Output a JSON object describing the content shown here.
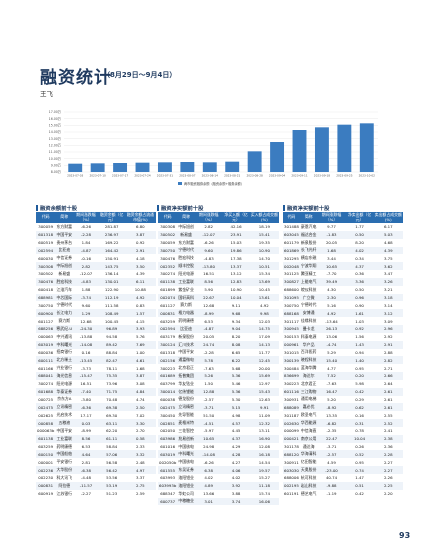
{
  "header": {
    "title": "融资统计",
    "date_range": "（8月29日～9月4日）",
    "author": "王飞"
  },
  "chart_data": {
    "type": "bar",
    "legend": "两市融资融券余额（融资余额+融券余额）",
    "y_ticks": [
      "17.00万",
      "16.00万",
      "15.00万",
      "14.00万",
      "13.00万",
      "12.00万",
      "11.00万",
      "10.00万",
      "9.00万",
      "8.00万"
    ],
    "ylim": [
      8,
      17
    ],
    "categories": [
      "2023-07-03",
      "2023-07-10",
      "2023-07-17",
      "2023-07-24",
      "2023-07-31",
      "2023-08-07",
      "2023-08-14",
      "2023-08-21",
      "2023-08-28",
      "2023-09-04",
      "2023-09-11",
      "2023-09-18",
      "2023-09-25",
      "2023-10-02"
    ],
    "values": [
      9.25,
      9.3,
      9.35,
      9.4,
      9.45,
      9.5,
      9.45,
      9.55,
      11.1,
      12.5,
      14.3,
      14.7,
      15.1,
      15.3
    ]
  },
  "sections": {
    "left": "融资余额前十股",
    "mid": "融资净买额前十股",
    "right": "融资净买额前十股"
  },
  "tables": {
    "left": {
      "headers": [
        "代码",
        "简称",
        "期间涨跌幅（%）",
        "融资余额（亿元）",
        "融资余额占流通市值(%)"
      ],
      "rows": [
        [
          "300059",
          "东方财富",
          "-6.26",
          "281.87",
          "6.80"
        ],
        [
          "601318",
          "中国平安",
          "-2.28",
          "236.97",
          "3.87"
        ],
        [
          "600519",
          "贵州茅台",
          "1.84",
          "169.22",
          "0.92"
        ],
        [
          "002594",
          "比亚迪",
          "-4.87",
          "164.42",
          "2.91"
        ],
        [
          "600030",
          "中信证券",
          "-0.16",
          "150.91",
          "4.18"
        ],
        [
          "300308",
          "中际旭创",
          "2.82",
          "143.75",
          "3.50"
        ],
        [
          "300502",
          "新易盛",
          "-12.07",
          "136.14",
          "4.39"
        ],
        [
          "300476",
          "胜宏科技",
          "-4.83",
          "130.01",
          "6.11"
        ],
        [
          "600418",
          "江淮汽车",
          "1.88",
          "122.90",
          "10.88"
        ],
        [
          "688981",
          "中芯国际",
          "-3.74",
          "112.19",
          "4.92"
        ],
        [
          "300750",
          "宁德时代",
          "9.60",
          "111.58",
          "0.83"
        ],
        [
          "600900",
          "长江电力",
          "1.29",
          "108.49",
          "1.57"
        ],
        [
          "601127",
          "赛力斯",
          "12.68",
          "100.45",
          "4.15"
        ],
        [
          "688256",
          "寒武纪-U",
          "-24.30",
          "96.89",
          "3.93"
        ],
        [
          "000063",
          "中兴通讯",
          "-13.88",
          "94.58",
          "5.76"
        ],
        [
          "603019",
          "中科曙光",
          "-14.08",
          "89.42",
          "7.69"
        ],
        [
          "600036",
          "招商银行",
          "0.16",
          "88.84",
          "1.00"
        ],
        [
          "600111",
          "北方稀土",
          "-13.45",
          "82.47",
          "4.61"
        ],
        [
          "601166",
          "兴业银行",
          "-3.73",
          "78.11",
          "1.68"
        ],
        [
          "688041",
          "海光信息",
          "-15.47",
          "75.35",
          "3.87"
        ],
        [
          "300274",
          "阳光电源",
          "16.51",
          "73.96",
          "3.08"
        ],
        [
          "601688",
          "华泰证券",
          "-7.40",
          "71.75",
          "4.84"
        ],
        [
          "000725",
          "京东方A",
          "-3.80",
          "70.48",
          "4.74"
        ],
        [
          "002475",
          "立讯精密",
          "-6.36",
          "69.38",
          "2.50"
        ],
        [
          "002625",
          "光启技术",
          "17.17",
          "69.30",
          "7.02"
        ],
        [
          "000858",
          "五粮液",
          "0.03",
          "63.11",
          "3.30"
        ],
        [
          "000063b",
          "中国平安",
          "-8.99",
          "62.20",
          "2.70"
        ],
        [
          "601138",
          "工业富联",
          "8.56",
          "61.11",
          "0.58"
        ],
        [
          "603259",
          "药明康德",
          "6.53",
          "58.84",
          "2.33"
        ],
        [
          "600150",
          "中国船舶",
          "4.64",
          "57.06",
          "3.32"
        ],
        [
          "000001",
          "平安银行",
          "2.81",
          "56.58",
          "2.48"
        ],
        [
          "002236",
          "大华股份",
          "-6.38",
          "56.42",
          "4.97"
        ],
        [
          "002230",
          "科大讯飞",
          "-4.48",
          "53.56",
          "3.37"
        ],
        [
          "000831",
          "阿拉德",
          "-11.57",
          "53.19",
          "2.75"
        ],
        [
          "600919",
          "江苏银行",
          "-2.27",
          "51.23",
          "2.59"
        ]
      ]
    },
    "mid": {
      "headers": [
        "代码",
        "简称",
        "期间涨跌幅（%）",
        "净买入额（亿元）",
        "买入额占成交额(%)"
      ],
      "rows": [
        [
          "300308",
          "中际旭创",
          "2.82",
          "42.16",
          "18.19"
        ],
        [
          "300502",
          "新易盛",
          "-12.07",
          "23.91",
          "15.41"
        ],
        [
          "300059",
          "东方财富",
          "-6.26",
          "15.03",
          "19.35"
        ],
        [
          "300750",
          "宁德时代",
          "9.60",
          "19.86",
          "10.90"
        ],
        [
          "300476",
          "胜宏科技",
          "-4.83",
          "17.38",
          "14.70"
        ],
        [
          "002352",
          "顺丰控股",
          "-13.80",
          "13.37",
          "10.51"
        ],
        [
          "300274",
          "阳光电源",
          "16.51",
          "13.12",
          "15.34"
        ],
        [
          "601138",
          "工业富联",
          "8.56",
          "12.83",
          "13.69"
        ],
        [
          "601899",
          "紫金矿业",
          "5.90",
          "10.90",
          "10.45"
        ],
        [
          "002074",
          "国轩高科",
          "22.67",
          "10.04",
          "13.61"
        ],
        [
          "601127",
          "赛力斯",
          "12.68",
          "9.11",
          "4.92"
        ],
        [
          "000831",
          "格力电器",
          "-8.99",
          "9.68",
          "9.98"
        ],
        [
          "603259",
          "药明康德",
          "6.53",
          "9.34",
          "12.03"
        ],
        [
          "002594",
          "比亚迪",
          "-4.87",
          "9.04",
          "14.75"
        ],
        [
          "603179",
          "新泉股份",
          "20.05",
          "8.20",
          "17.09"
        ],
        [
          "300124",
          "汇川技术",
          "24.74",
          "8.08",
          "14.13"
        ],
        [
          "601318",
          "中国平安",
          "-2.28",
          "6.65",
          "11.77"
        ],
        [
          "002156",
          "通富微电",
          "5.78",
          "6.22",
          "12.45"
        ],
        [
          "300223",
          "北京君正",
          "-7.63",
          "5.68",
          "20.00"
        ],
        [
          "601689",
          "拓普集团",
          "5.26",
          "5.36",
          "15.69"
        ],
        [
          "603799",
          "华友钴业",
          "1.50",
          "5.46",
          "12.97"
        ],
        [
          "300014",
          "亿纬锂能",
          "12.88",
          "5.36",
          "15.43"
        ],
        [
          "600038",
          "德龙股份",
          "-2.57",
          "5.30",
          "12.63"
        ],
        [
          "002475",
          "立讯精密",
          "-3.71",
          "5.15",
          "9.91"
        ],
        [
          "300450",
          "先导智能",
          "51.50",
          "4.98",
          "11.09"
        ],
        [
          "002851",
          "麦格米特",
          "-4.51",
          "4.57",
          "12.32"
        ],
        [
          "002050",
          "三花智控",
          "-5.97",
          "4.45",
          "13.11"
        ],
        [
          "603986",
          "兆易创新",
          "10.65",
          "4.37",
          "16.90"
        ],
        [
          "601016",
          "中国核电",
          "24.98",
          "4.29",
          "12.08"
        ],
        [
          "603019",
          "中科曙光",
          "-14.08",
          "4.28",
          "16.18"
        ],
        [
          "002050b",
          "中国核电",
          "-6.26",
          "4.27",
          "14.54"
        ],
        [
          "601555",
          "东吴证券",
          "6.38",
          "4.06",
          "19.57"
        ],
        [
          "603993",
          "洛阳钼业",
          "4.02",
          "4.02",
          "15.27"
        ],
        [
          "603993b",
          "洛阳钼业",
          "4.89",
          "3.92",
          "11.18"
        ],
        [
          "688347",
          "华虹公司",
          "13.66",
          "3.88",
          "15.74"
        ],
        [
          "600737",
          "中粮糖业",
          "3.01",
          "3.74",
          "16.06"
        ]
      ]
    },
    "right": {
      "headers": [
        "代码",
        "简称",
        "期间涨跌幅（%）",
        "净卖出额（亿元）",
        "卖出额占成交额(%)"
      ],
      "rows": [
        [
          "301488",
          "豪恩汽电",
          "9.77",
          "1.77",
          "6.17"
        ],
        [
          "603045",
          "福达合金",
          "-1.83",
          "0.50",
          "5.03"
        ],
        [
          "601179",
          "新泉股份",
          "20.05",
          "8.20",
          "4.68"
        ],
        [
          "601869",
          "长飞光纤",
          "1.68",
          "4.02",
          "4.39"
        ],
        [
          "301295",
          "横店东磁",
          "3.44",
          "0.34",
          "3.75"
        ],
        [
          "002048",
          "宁波华翔",
          "10.65",
          "4.37",
          "3.62"
        ],
        [
          "301125",
          "腾亚精工",
          "-7.70",
          "0.36",
          "3.47"
        ],
        [
          "300827",
          "上能电气",
          "39.49",
          "3.36",
          "3.26"
        ],
        [
          "688600",
          "皖仪科技",
          "4.30",
          "0.50",
          "3.21"
        ],
        [
          "301095",
          "广立微",
          "2.30",
          "0.96",
          "3.18"
        ],
        [
          "300750",
          "宁德时代",
          "5.16",
          "0.90",
          "3.14"
        ],
        [
          "688168",
          "安博通",
          "4.92",
          "1.61",
          "3.12"
        ],
        [
          "301117",
          "佳缘科技",
          "-13.64",
          "1.03",
          "3.09"
        ],
        [
          "300945",
          "曼卡龙",
          "26.13",
          "0.92",
          "2.96"
        ],
        [
          "300153",
          "科泰电源",
          "13.06",
          "1.56",
          "2.92"
        ],
        [
          "000961",
          "华产品",
          "-4.74",
          "1.43",
          "2.91"
        ],
        [
          "301015",
          "百洋医药",
          "5.29",
          "0.94",
          "2.88"
        ],
        [
          "300139",
          "晓程科技",
          "15.40",
          "1.40",
          "2.82"
        ],
        [
          "300484",
          "蓝海华腾",
          "4.77",
          "0.95",
          "2.71"
        ],
        [
          "836699",
          "海达尔",
          "7.52",
          "0.20",
          "2.66"
        ],
        [
          "300223",
          "北京君正",
          "-7.63",
          "5.98",
          "2.64"
        ],
        [
          "601116",
          "三江购物",
          "16.47",
          "0.42",
          "2.61"
        ],
        [
          "300931",
          "通用电梯",
          "5.20",
          "0.29",
          "2.61"
        ],
        [
          "688089",
          "嘉必优",
          "-8.92",
          "0.62",
          "2.61"
        ],
        [
          "301187",
          "欧圣电气",
          "13.35",
          "0.16",
          "2.55"
        ],
        [
          "002630",
          "华西能源",
          "-6.82",
          "0.31",
          "2.52"
        ],
        [
          "000099",
          "中信海直",
          "-2.35",
          "0.78",
          "2.41"
        ],
        [
          "000421",
          "南京公用",
          "22.47",
          "10.04",
          "2.38"
        ],
        [
          "301178",
          "通达海",
          "-3.71",
          "0.26",
          "2.36"
        ],
        [
          "688120",
          "华海清科",
          "-2.57",
          "0.52",
          "2.28"
        ],
        [
          "300911",
          "亿田智能",
          "4.59",
          "0.95",
          "2.27"
        ],
        [
          "603030",
          "天奥股份",
          "-23.00",
          "0.74",
          "2.27"
        ],
        [
          "688006",
          "杭可科技",
          "40.74",
          "1.47",
          "2.26"
        ],
        [
          "002195",
          "岩山科技",
          "-9.88",
          "0.51",
          "2.25"
        ],
        [
          "601191",
          "德艺电气",
          "-1.19",
          "0.42",
          "2.20"
        ]
      ]
    }
  },
  "page_number": "93"
}
